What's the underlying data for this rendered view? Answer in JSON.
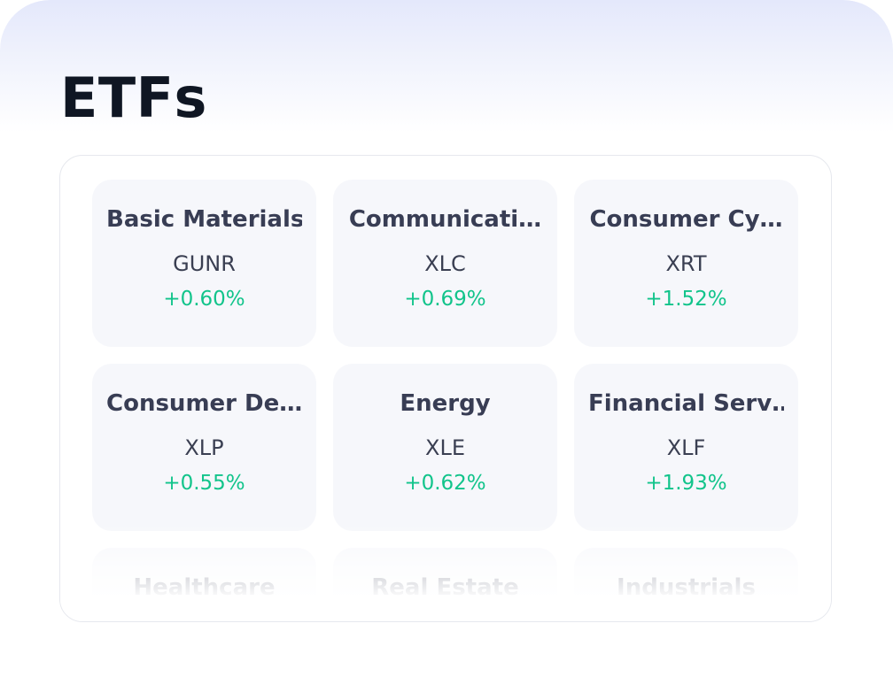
{
  "header": {
    "title": "ETFs"
  },
  "colors": {
    "positive": "#12c48b",
    "card_background": "#f6f7fb",
    "title": "#0f1623"
  },
  "etfs": [
    {
      "name": "Basic Materials",
      "ticker": "GUNR",
      "change": "+0.60%"
    },
    {
      "name": "Communicati…",
      "ticker": "XLC",
      "change": "+0.69%"
    },
    {
      "name": "Consumer Cy…",
      "ticker": "XRT",
      "change": "+1.52%"
    },
    {
      "name": "Consumer De…",
      "ticker": "XLP",
      "change": "+0.55%"
    },
    {
      "name": "Energy",
      "ticker": "XLE",
      "change": "+0.62%"
    },
    {
      "name": "Financial Serv…",
      "ticker": "XLF",
      "change": "+1.93%"
    },
    {
      "name": "Healthcare"
    },
    {
      "name": "Real Estate"
    },
    {
      "name": "Industrials"
    }
  ]
}
